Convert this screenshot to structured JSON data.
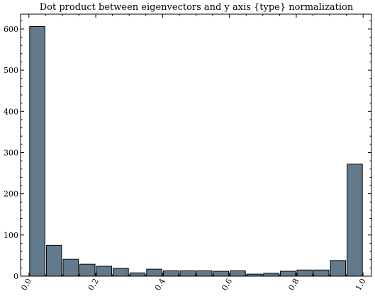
{
  "chart_data": {
    "type": "bar",
    "title": "Dot product between eigenvectors and y axis {type} normalization",
    "xlabel": "",
    "ylabel": "",
    "bin_width": 0.05,
    "x": [
      0.025,
      0.075,
      0.125,
      0.175,
      0.225,
      0.275,
      0.325,
      0.375,
      0.425,
      0.475,
      0.525,
      0.575,
      0.625,
      0.675,
      0.725,
      0.775,
      0.825,
      0.875,
      0.925,
      0.975
    ],
    "values": [
      606,
      75,
      41,
      29,
      24,
      19,
      8,
      17,
      13,
      13,
      13,
      12,
      13,
      5,
      7,
      12,
      15,
      15,
      38,
      272
    ],
    "xlim": [
      -0.025,
      1.025
    ],
    "ylim": [
      0,
      636
    ],
    "x_ticks": [
      0.0,
      0.2,
      0.4,
      0.6,
      0.8,
      1.0
    ],
    "x_tick_labels": [
      "0.0",
      "0.2",
      "0.4",
      "0.6",
      "0.8",
      "1.0"
    ],
    "y_ticks": [
      0,
      100,
      200,
      300,
      400,
      500,
      600
    ],
    "y_tick_labels": [
      "0",
      "100",
      "200",
      "300",
      "400",
      "500",
      "600"
    ],
    "bar_color": "#627a8b",
    "edge_color": "#000000",
    "grid": false,
    "legend": "none"
  }
}
